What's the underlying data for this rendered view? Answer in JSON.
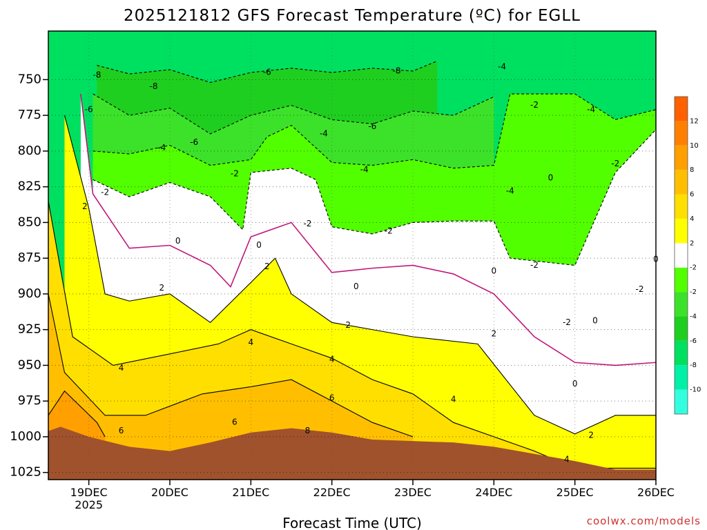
{
  "chart_data": {
    "type": "heatmap",
    "title": "2025121812 GFS Forecast Temperature (ºC) for EGLL",
    "xlabel": "Forecast Time (UTC)",
    "ylabel": "",
    "credit": "coolwx.com/models",
    "x_range_days": [
      -0.5,
      7.0
    ],
    "x_ticks": [
      {
        "day": 0,
        "label": "19DEC",
        "sublabel": "2025"
      },
      {
        "day": 1,
        "label": "20DEC",
        "sublabel": ""
      },
      {
        "day": 2,
        "label": "21DEC",
        "sublabel": ""
      },
      {
        "day": 3,
        "label": "22DEC",
        "sublabel": ""
      },
      {
        "day": 4,
        "label": "23DEC",
        "sublabel": ""
      },
      {
        "day": 5,
        "label": "24DEC",
        "sublabel": ""
      },
      {
        "day": 6,
        "label": "25DEC",
        "sublabel": ""
      },
      {
        "day": 7,
        "label": "26DEC",
        "sublabel": ""
      }
    ],
    "y_range_hPa": [
      716,
      1030
    ],
    "y_ticks": [
      750,
      775,
      800,
      825,
      850,
      875,
      900,
      925,
      950,
      975,
      1000,
      1025
    ],
    "grid": true,
    "ground_color": "#a0522d",
    "surface_pressure": [
      [
        -0.5,
        996
      ],
      [
        -0.35,
        993
      ],
      [
        0,
        1000
      ],
      [
        0.5,
        1007
      ],
      [
        1.0,
        1010
      ],
      [
        1.5,
        1004
      ],
      [
        2.0,
        997
      ],
      [
        2.5,
        994
      ],
      [
        3.0,
        997
      ],
      [
        3.5,
        1002
      ],
      [
        4.0,
        1003
      ],
      [
        4.5,
        1004
      ],
      [
        5.0,
        1007
      ],
      [
        5.5,
        1012
      ],
      [
        6.0,
        1017
      ],
      [
        6.5,
        1023
      ],
      [
        7.0,
        1023
      ]
    ],
    "color_scale": {
      "levels": [
        -12,
        -10,
        -8,
        -6,
        -4,
        -2,
        2,
        4,
        6,
        8,
        10,
        12,
        14
      ],
      "colors": [
        "#33ffe0",
        "#00f0a8",
        "#00e060",
        "#1fcf1f",
        "#3ce22a",
        "#52ff00",
        "#ffffff",
        "#ffff00",
        "#ffdf00",
        "#ffbf00",
        "#ff9f00",
        "#ff8000",
        "#ff6000"
      ],
      "labels": [
        "-10",
        "-8",
        "-6",
        "-4",
        "-2",
        "",
        "2",
        "4",
        "6",
        "8",
        "10",
        "12"
      ]
    },
    "isotherms_hPa": [
      {
        "temp": -8,
        "points": [
          [
            0.1,
            740
          ],
          [
            0.5,
            746
          ],
          [
            1.0,
            743
          ],
          [
            1.5,
            752
          ],
          [
            2.0,
            745
          ],
          [
            2.5,
            742
          ],
          [
            3.0,
            745
          ],
          [
            3.5,
            742
          ],
          [
            4.0,
            744
          ],
          [
            4.3,
            737
          ]
        ]
      },
      {
        "temp": -6,
        "points": [
          [
            0.05,
            760
          ],
          [
            0.5,
            775
          ],
          [
            1.0,
            770
          ],
          [
            1.5,
            788
          ],
          [
            2.0,
            775
          ],
          [
            2.5,
            768
          ],
          [
            3.0,
            778
          ],
          [
            3.5,
            781
          ],
          [
            4.0,
            772
          ],
          [
            4.5,
            775
          ],
          [
            5.0,
            762
          ]
        ]
      },
      {
        "temp": -4,
        "points": [
          [
            0.05,
            800
          ],
          [
            0.5,
            802
          ],
          [
            1.0,
            796
          ],
          [
            1.5,
            810
          ],
          [
            2.0,
            806
          ],
          [
            2.2,
            790
          ],
          [
            2.5,
            782
          ],
          [
            3.0,
            808
          ],
          [
            3.5,
            810
          ],
          [
            4.0,
            806
          ],
          [
            4.5,
            812
          ],
          [
            5.0,
            810
          ],
          [
            5.2,
            760
          ],
          [
            6.0,
            760
          ],
          [
            6.5,
            778
          ],
          [
            7.0,
            771
          ]
        ]
      },
      {
        "temp": -2,
        "points": [
          [
            0.05,
            820
          ],
          [
            0.5,
            832
          ],
          [
            1.0,
            822
          ],
          [
            1.5,
            832
          ],
          [
            1.9,
            855
          ],
          [
            2.0,
            815
          ],
          [
            2.5,
            812
          ],
          [
            2.8,
            820
          ],
          [
            3.0,
            853
          ],
          [
            3.5,
            858
          ],
          [
            4.0,
            850
          ],
          [
            4.5,
            849
          ],
          [
            5.0,
            849
          ],
          [
            5.2,
            875
          ],
          [
            6.0,
            880
          ],
          [
            6.5,
            815
          ],
          [
            7.0,
            785
          ]
        ]
      },
      {
        "temp": 0,
        "points": [
          [
            -0.1,
            760
          ],
          [
            0.05,
            830
          ],
          [
            0.5,
            868
          ],
          [
            1.0,
            866
          ],
          [
            1.5,
            880
          ],
          [
            1.75,
            895
          ],
          [
            2.0,
            860
          ],
          [
            2.5,
            850
          ],
          [
            3.0,
            885
          ],
          [
            3.5,
            882
          ],
          [
            4.0,
            880
          ],
          [
            4.5,
            886
          ],
          [
            5.0,
            900
          ],
          [
            5.5,
            930
          ],
          [
            6.0,
            948
          ],
          [
            6.5,
            950
          ],
          [
            7.0,
            948
          ]
        ]
      },
      {
        "temp": 2,
        "points": [
          [
            -0.3,
            775
          ],
          [
            0.0,
            840
          ],
          [
            0.2,
            900
          ],
          [
            0.5,
            905
          ],
          [
            1.0,
            900
          ],
          [
            1.5,
            920
          ],
          [
            2.0,
            892
          ],
          [
            2.3,
            875
          ],
          [
            2.5,
            900
          ],
          [
            3.0,
            920
          ],
          [
            3.5,
            925
          ],
          [
            4.0,
            930
          ],
          [
            4.8,
            935
          ],
          [
            5.5,
            985
          ],
          [
            6.0,
            998
          ],
          [
            6.5,
            985
          ],
          [
            7.0,
            985
          ]
        ]
      },
      {
        "temp": 4,
        "points": [
          [
            -0.5,
            835
          ],
          [
            -0.2,
            930
          ],
          [
            0.3,
            950
          ],
          [
            1.0,
            942
          ],
          [
            1.6,
            935
          ],
          [
            2.0,
            925
          ],
          [
            2.5,
            935
          ],
          [
            3.0,
            945
          ],
          [
            3.5,
            960
          ],
          [
            4.0,
            970
          ],
          [
            4.5,
            990
          ],
          [
            5.0,
            1000
          ],
          [
            5.5,
            1010
          ],
          [
            6.0,
            1022
          ],
          [
            7.0,
            1022
          ]
        ]
      },
      {
        "temp": 6,
        "points": [
          [
            -0.5,
            900
          ],
          [
            -0.3,
            955
          ],
          [
            0.2,
            985
          ],
          [
            0.7,
            985
          ],
          [
            1.4,
            970
          ],
          [
            2.0,
            965
          ],
          [
            2.5,
            960
          ],
          [
            3.0,
            975
          ],
          [
            3.5,
            990
          ],
          [
            4.0,
            1000
          ]
        ]
      },
      {
        "temp": 8,
        "points": [
          [
            -0.5,
            985
          ],
          [
            -0.3,
            968
          ],
          [
            0.1,
            990
          ],
          [
            0.2,
            1000
          ]
        ]
      }
    ],
    "contour_labels": [
      {
        "text": "-8",
        "day": 0.1,
        "p": 747
      },
      {
        "text": "-8",
        "day": 0.8,
        "p": 755
      },
      {
        "text": "-8",
        "day": 3.8,
        "p": 744
      },
      {
        "text": "-6",
        "day": 2.2,
        "p": 745
      },
      {
        "text": "-6",
        "day": 0.0,
        "p": 771
      },
      {
        "text": "-6",
        "day": 1.3,
        "p": 794
      },
      {
        "text": "-6",
        "day": 3.5,
        "p": 783
      },
      {
        "text": "-4",
        "day": 0.9,
        "p": 798
      },
      {
        "text": "-4",
        "day": 2.9,
        "p": 788
      },
      {
        "text": "-4",
        "day": 3.4,
        "p": 813
      },
      {
        "text": "-4",
        "day": 5.1,
        "p": 741
      },
      {
        "text": "-4",
        "day": 6.2,
        "p": 771
      },
      {
        "text": "-4",
        "day": 5.2,
        "p": 828
      },
      {
        "text": "-2",
        "day": 0.2,
        "p": 829
      },
      {
        "text": "-2",
        "day": 1.8,
        "p": 816
      },
      {
        "text": "-2",
        "day": 2.7,
        "p": 851
      },
      {
        "text": "-2",
        "day": 3.7,
        "p": 856
      },
      {
        "text": "-2",
        "day": 5.5,
        "p": 768
      },
      {
        "text": "-2",
        "day": 6.5,
        "p": 809
      },
      {
        "text": "-2",
        "day": 5.5,
        "p": 880
      },
      {
        "text": "-2",
        "day": 6.8,
        "p": 897
      },
      {
        "text": "-2",
        "day": 5.9,
        "p": 920
      },
      {
        "text": "0",
        "day": 1.1,
        "p": 863
      },
      {
        "text": "0",
        "day": 2.1,
        "p": 866
      },
      {
        "text": "0",
        "day": 3.3,
        "p": 895
      },
      {
        "text": "0",
        "day": 5.0,
        "p": 884
      },
      {
        "text": "0",
        "day": 5.7,
        "p": 819
      },
      {
        "text": "0",
        "day": 6.25,
        "p": 919
      },
      {
        "text": "0",
        "day": 7.0,
        "p": 876
      },
      {
        "text": "0",
        "day": 6.0,
        "p": 963
      },
      {
        "text": "2",
        "day": -0.05,
        "p": 839
      },
      {
        "text": "2",
        "day": 0.9,
        "p": 896
      },
      {
        "text": "2",
        "day": 2.2,
        "p": 881
      },
      {
        "text": "2",
        "day": 3.2,
        "p": 922
      },
      {
        "text": "2",
        "day": 5.0,
        "p": 928
      },
      {
        "text": "2",
        "day": 6.2,
        "p": 999
      },
      {
        "text": "4",
        "day": 0.4,
        "p": 952
      },
      {
        "text": "4",
        "day": 2.0,
        "p": 934
      },
      {
        "text": "4",
        "day": 3.0,
        "p": 946
      },
      {
        "text": "4",
        "day": 4.5,
        "p": 974
      },
      {
        "text": "4",
        "day": 5.9,
        "p": 1016
      },
      {
        "text": "6",
        "day": 0.4,
        "p": 996
      },
      {
        "text": "6",
        "day": 1.8,
        "p": 990
      },
      {
        "text": "6",
        "day": 3.0,
        "p": 973
      },
      {
        "text": "8",
        "day": 2.7,
        "p": 996
      }
    ]
  }
}
